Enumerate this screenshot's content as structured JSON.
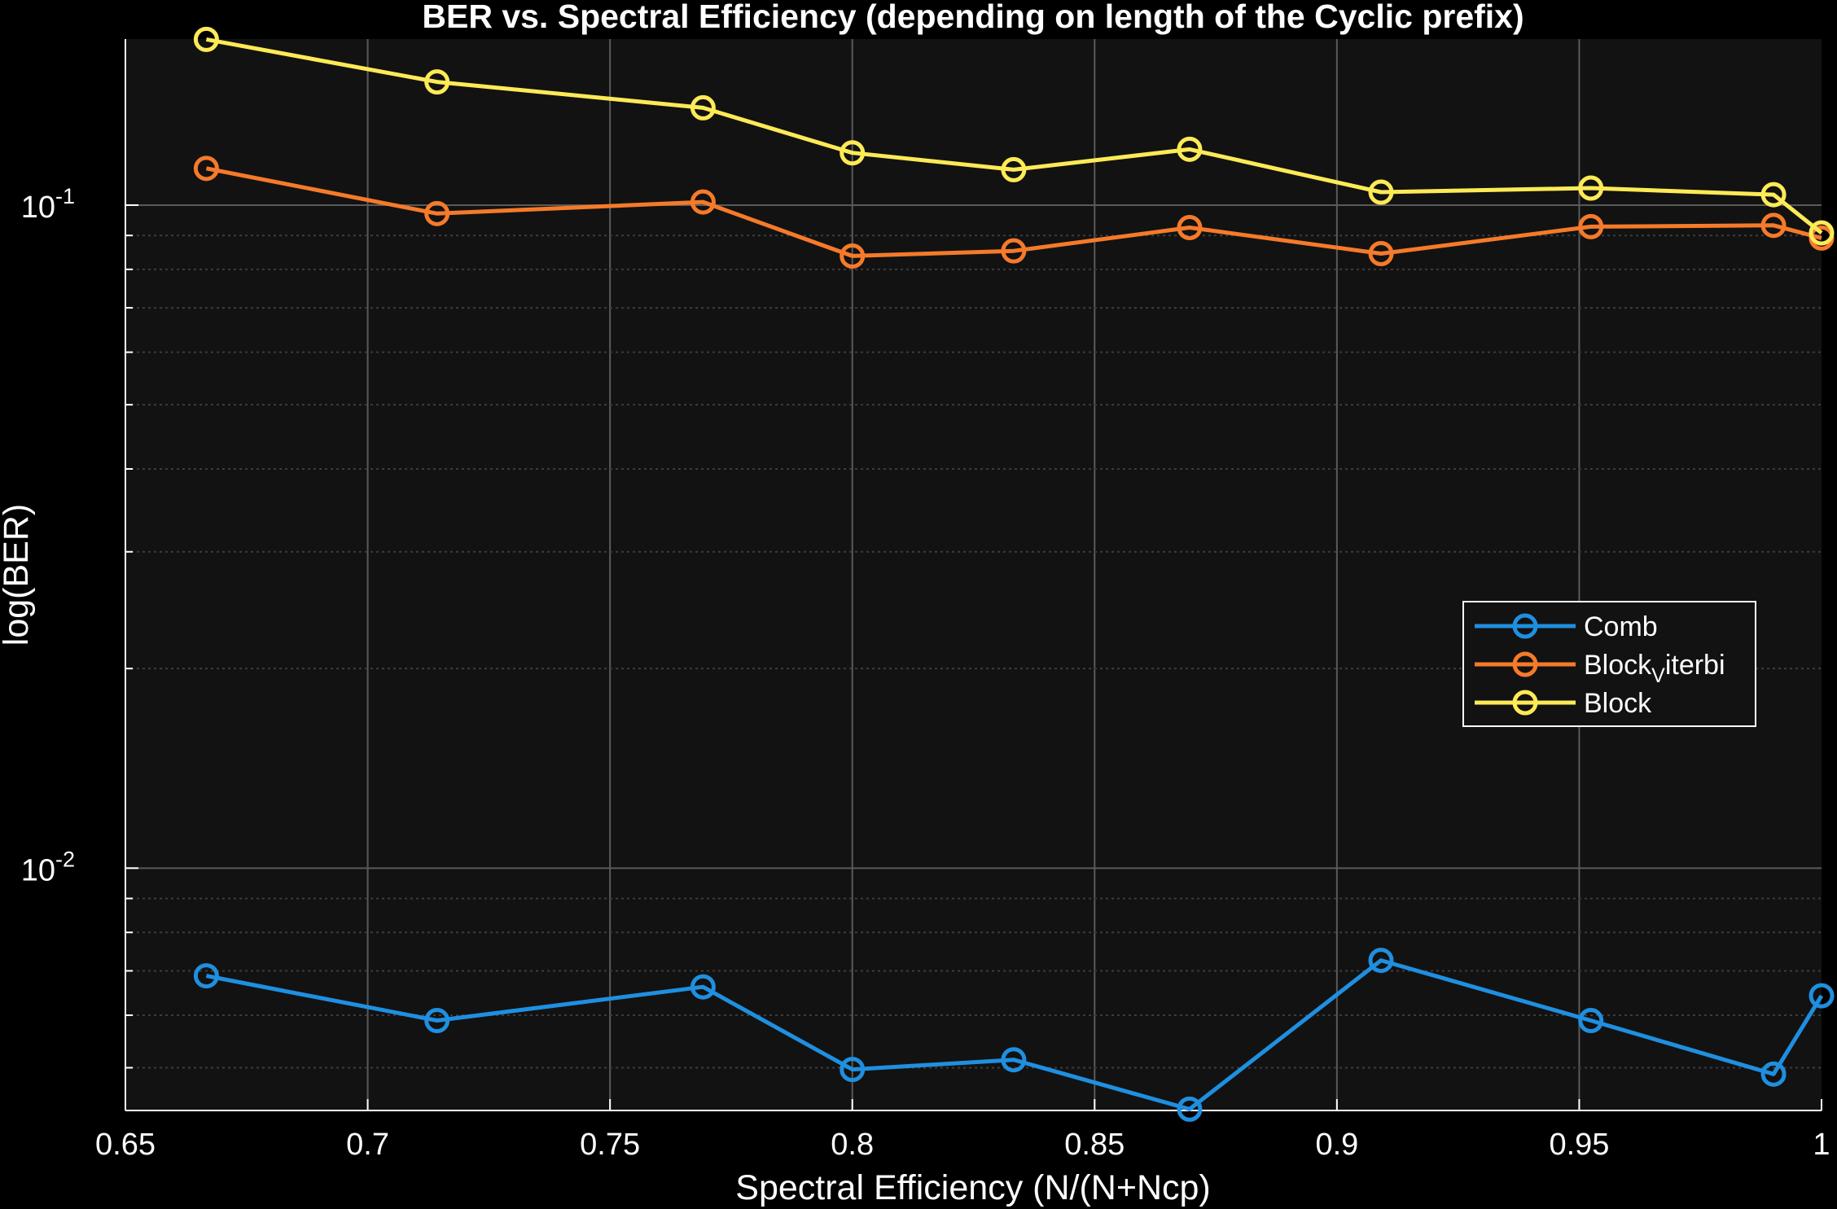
{
  "chart_data": {
    "type": "line",
    "title": "BER vs. Spectral Efficiency (depending on length of the Cyclic prefix)",
    "xlabel": "Spectral Efficiency (N/(N+Ncp)",
    "ylabel": "log(BER)",
    "xlim": [
      0.65,
      1.0
    ],
    "ylim": [
      0.00431,
      0.178
    ],
    "yscale": "log",
    "grid": true,
    "legend_position": "right",
    "x_ticks": [
      "0.65",
      "0.7",
      "0.75",
      "0.8",
      "0.85",
      "0.9",
      "0.95",
      "1"
    ],
    "y_tick_labels": [
      {
        "base": "10",
        "exp": "-1",
        "value": 0.1
      },
      {
        "base": "10",
        "exp": "-2",
        "value": 0.01
      }
    ],
    "x": [
      0.6667,
      0.7143,
      0.7692,
      0.8,
      0.8333,
      0.8696,
      0.9091,
      0.9524,
      0.9901,
      1.0
    ],
    "series": [
      {
        "name": "Comb",
        "color": "#1f8fe0",
        "values": [
          0.00688,
          0.00589,
          0.00662,
          0.00497,
          0.00514,
          0.00433,
          0.00726,
          0.00589,
          0.00489,
          0.00642
        ]
      },
      {
        "name": "Block_Viterbi",
        "legend_main": "Block",
        "legend_sub": "V",
        "legend_rest": "iterbi",
        "color": "#f57a2a",
        "values": [
          0.1136,
          0.0971,
          0.1011,
          0.0838,
          0.0853,
          0.0925,
          0.0845,
          0.0928,
          0.0932,
          0.0892
        ]
      },
      {
        "name": "Block",
        "color": "#fdea56",
        "values": [
          0.1778,
          0.1534,
          0.1402,
          0.1199,
          0.1131,
          0.1214,
          0.1046,
          0.1061,
          0.1037,
          0.0908
        ]
      }
    ]
  }
}
